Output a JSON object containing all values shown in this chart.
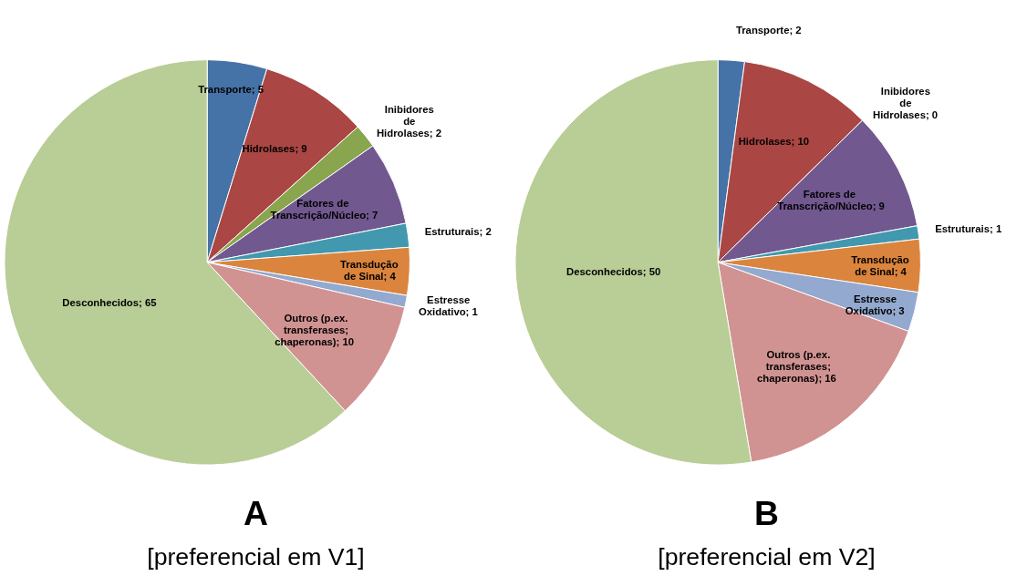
{
  "chart_data": [
    {
      "type": "pie",
      "title": "A",
      "subtitle": "[preferencial em V1]",
      "legend": false,
      "categories": [
        "Transporte",
        "Hidrolases",
        "Inibidores de Hidrolases",
        "Fatores de Transcrição/Núcleo",
        "Estruturais",
        "Transdução de Sinal",
        "Estresse Oxidativo",
        "Outros (p.ex. transferases; chaperonas)",
        "Desconhecidos"
      ],
      "values": [
        5,
        9,
        2,
        7,
        2,
        4,
        1,
        10,
        65
      ],
      "value_labels": [
        "; 5",
        "; 9",
        "; 2",
        "; 7",
        "; 2",
        "; 4",
        "; 1",
        "; 10",
        "; 65"
      ],
      "colors": [
        "#4572a7",
        "#aa4643",
        "#89a54e",
        "#71588f",
        "#4198af",
        "#db843d",
        "#93a9cf",
        "#d19392",
        "#b9cd96"
      ]
    },
    {
      "type": "pie",
      "title": "B",
      "subtitle": "[preferencial em V2]",
      "legend": false,
      "categories": [
        "Transporte",
        "Hidrolases",
        "Inibidores de Hidrolases",
        "Fatores de Transcrição/Núcleo",
        "Estruturais",
        "Transdução de Sinal",
        "Estresse Oxidativo",
        "Outros (p.ex. transferases; chaperonas)",
        "Desconhecidos"
      ],
      "values": [
        2,
        10,
        0,
        9,
        1,
        4,
        3,
        16,
        50
      ],
      "value_labels": [
        "; 2",
        "; 10",
        "; 0",
        "; 9",
        "; 1",
        "; 4",
        "; 3",
        "; 16",
        "; 50"
      ],
      "colors": [
        "#4572a7",
        "#aa4643",
        "#89a54e",
        "#71588f",
        "#4198af",
        "#db843d",
        "#93a9cf",
        "#d19392",
        "#b9cd96"
      ]
    }
  ]
}
